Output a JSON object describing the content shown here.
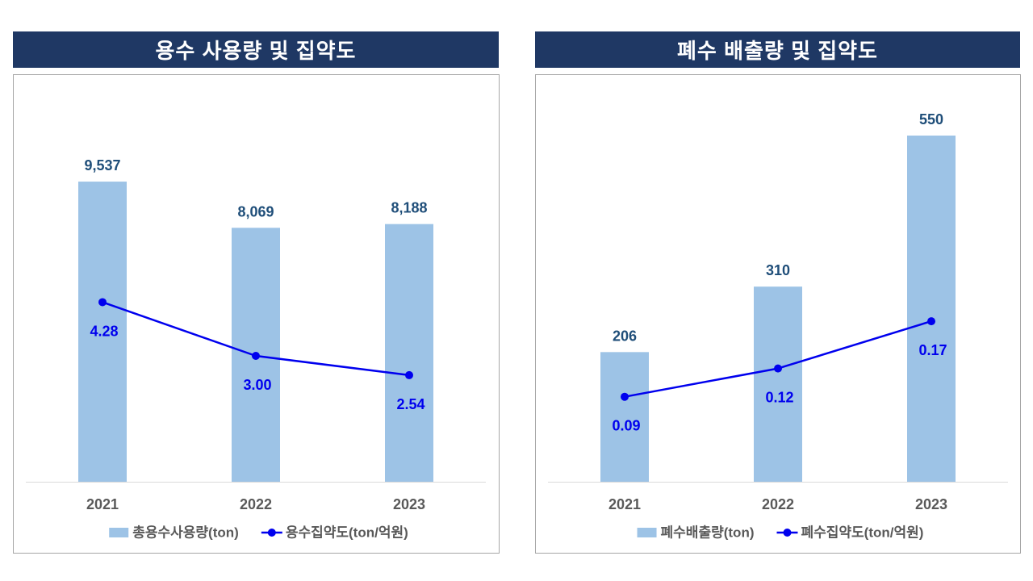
{
  "theme": {
    "header_bg": "#1f3864",
    "header_text": "#ffffff",
    "bar_color": "#9dc3e6",
    "bar_label_color": "#1f4e79",
    "line_color": "#0000ee",
    "axis_text_color": "#595959",
    "axis_line_color": "#d9d9d9",
    "border_color": "#a6a6a6"
  },
  "chart_data": [
    {
      "type": "bar",
      "title": "용수 사용량 및 집약도",
      "categories": [
        "2021",
        "2022",
        "2023"
      ],
      "series": [
        {
          "name": "총용수사용량(ton)",
          "type": "bar",
          "axis": "primary",
          "values": [
            9537,
            8069,
            8188
          ],
          "labels": [
            "9,537",
            "8,069",
            "8,188"
          ]
        },
        {
          "name": "용수집약도(ton/억원)",
          "type": "line",
          "axis": "secondary",
          "values": [
            4.28,
            3.0,
            2.54
          ],
          "labels": [
            "4.28",
            "3.00",
            "2.54"
          ]
        }
      ],
      "ylim": [
        0,
        12000
      ],
      "y2lim": [
        0,
        9
      ],
      "grid": false,
      "legend": "bottom"
    },
    {
      "type": "bar",
      "title": "폐수 배출량 및 집약도",
      "categories": [
        "2021",
        "2022",
        "2023"
      ],
      "series": [
        {
          "name": "폐수배출량(ton)",
          "type": "bar",
          "axis": "primary",
          "values": [
            206,
            310,
            550
          ],
          "labels": [
            "206",
            "310",
            "550"
          ]
        },
        {
          "name": "폐수집약도(ton/억원)",
          "type": "line",
          "axis": "secondary",
          "values": [
            0.09,
            0.12,
            0.17
          ],
          "labels": [
            "0.09",
            "0.12",
            "0.17"
          ]
        }
      ],
      "ylim": [
        0,
        600
      ],
      "y2lim": [
        0,
        0.4
      ],
      "grid": false,
      "legend": "bottom"
    }
  ]
}
